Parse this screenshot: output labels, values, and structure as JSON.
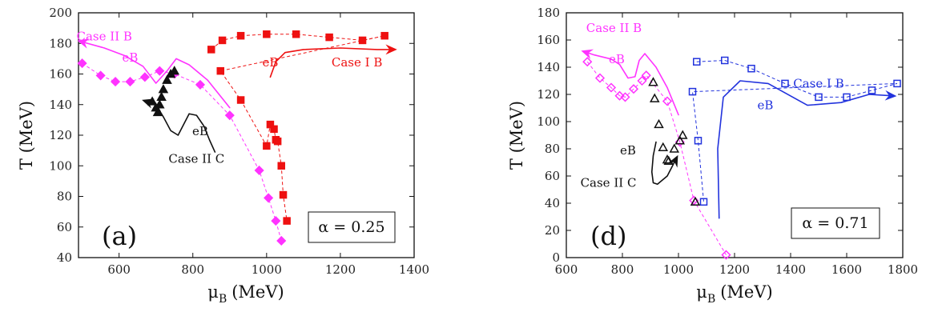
{
  "colors": {
    "magenta": "#ff33ff",
    "red": "#ee1111",
    "black": "#111111",
    "blue": "#2233dd",
    "purple": "#7733aa"
  },
  "chart_data": [
    {
      "type": "scatter",
      "panel_label": "(a)",
      "alpha_label": "α = 0.25",
      "xlabel": "μ_B (MeV)",
      "xlabel_main": "μ",
      "xlabel_sub": "B",
      "xlabel_rest": "(MeV)",
      "ylabel": "T (MeV)",
      "xlim": [
        490,
        1400
      ],
      "ylim": [
        40,
        200
      ],
      "xticks": [
        600,
        800,
        1000,
        1200,
        1400
      ],
      "yticks": [
        40,
        60,
        80,
        100,
        120,
        140,
        160,
        180,
        200
      ],
      "series": [
        {
          "name": "Case II B",
          "color": "#ff33ff",
          "marker": "diamond",
          "filled": true,
          "dashed": true,
          "x": [
            500,
            550,
            590,
            630,
            670,
            710,
            750,
            820,
            900,
            980,
            1005,
            1025,
            1040
          ],
          "y": [
            167,
            159,
            155,
            155,
            158,
            162,
            160,
            153,
            133,
            97,
            79,
            64,
            51
          ]
        },
        {
          "name": "Case I B",
          "color": "#ee1111",
          "marker": "square",
          "filled": true,
          "dashed": true,
          "x": [
            850,
            880,
            930,
            1000,
            1080,
            1170,
            1260,
            1320,
            875,
            930,
            1000,
            1010,
            1020,
            1025,
            1030,
            1040,
            1045,
            1055
          ],
          "y": [
            176,
            182,
            185,
            186,
            186,
            184,
            182,
            185,
            162,
            143,
            113,
            127,
            124,
            117,
            116,
            100,
            81,
            64
          ]
        },
        {
          "name": "Case II C",
          "color": "#111111",
          "marker": "triangle",
          "filled": true,
          "dashed": false,
          "x": [
            690,
            700,
            705,
            710,
            715,
            720,
            730,
            740,
            750
          ],
          "y": [
            142,
            138,
            135,
            140,
            145,
            150,
            156,
            160,
            162
          ]
        }
      ],
      "annotations": [
        {
          "text": "Case II B",
          "color": "#ff33ff",
          "x": 560,
          "y": 182
        },
        {
          "text": "eB",
          "color": "#ff33ff",
          "x": 630,
          "y": 168
        },
        {
          "text": "eB",
          "color": "#ee1111",
          "x": 1010,
          "y": 165
        },
        {
          "text": "Case I B",
          "color": "#ee1111",
          "x": 1245,
          "y": 165
        },
        {
          "text": "eB",
          "color": "#111111",
          "x": 820,
          "y": 120
        },
        {
          "text": "Case II C",
          "color": "#111111",
          "x": 810,
          "y": 102
        }
      ],
      "trend_arrows": [
        {
          "color": "#ff33ff",
          "x": [
            900,
            840,
            790,
            755,
            730,
            700,
            665,
            615,
            560,
            500
          ],
          "y": [
            138,
            156,
            166,
            170,
            162,
            154,
            165,
            172,
            177,
            181
          ]
        },
        {
          "color": "#ee1111",
          "x": [
            1010,
            1025,
            1050,
            1100,
            1200,
            1300,
            1340
          ],
          "y": [
            158,
            168,
            174,
            176,
            177,
            176,
            176
          ]
        },
        {
          "color": "#111111",
          "x": [
            860,
            845,
            830,
            810,
            790,
            775,
            760,
            740,
            720,
            700,
            675
          ],
          "y": [
            109,
            117,
            126,
            133,
            134,
            127,
            120,
            123,
            132,
            140,
            142
          ]
        }
      ]
    },
    {
      "type": "scatter",
      "panel_label": "(d)",
      "alpha_label": "α = 0.71",
      "xlabel": "μ_B (MeV)",
      "xlabel_main": "μ",
      "xlabel_sub": "B",
      "xlabel_rest": "(MeV)",
      "ylabel": "T (MeV)",
      "xlim": [
        600,
        1800
      ],
      "ylim": [
        0,
        180
      ],
      "xticks": [
        600,
        800,
        1000,
        1200,
        1400,
        1600,
        1800
      ],
      "yticks": [
        0,
        20,
        40,
        60,
        80,
        100,
        120,
        140,
        160,
        180
      ],
      "series": [
        {
          "name": "Case II B",
          "color": "#ff33ff",
          "marker": "diamond",
          "filled": false,
          "dashed": true,
          "x": [
            675,
            720,
            760,
            790,
            810,
            840,
            870,
            885,
            960,
            1005,
            1055,
            1170
          ],
          "y": [
            144,
            132,
            125,
            119,
            118,
            124,
            130,
            134,
            115,
            85,
            42,
            2
          ]
        },
        {
          "name": "Case I B",
          "color": "#2233dd",
          "marker": "square",
          "filled": false,
          "dashed": true,
          "x": [
            1065,
            1165,
            1260,
            1380,
            1500,
            1600,
            1690,
            1780,
            1050,
            1070,
            1090
          ],
          "y": [
            144,
            145,
            139,
            128,
            118,
            118,
            123,
            128,
            122,
            86,
            41
          ]
        },
        {
          "name": "Case II C",
          "color": "#111111",
          "marker": "triangle",
          "filled": false,
          "dashed": false,
          "x": [
            910,
            915,
            930,
            945,
            960,
            965,
            985,
            1005,
            1015,
            1060
          ],
          "y": [
            129,
            117,
            98,
            81,
            72,
            71,
            80,
            86,
            90,
            41
          ]
        }
      ],
      "annotations": [
        {
          "text": "Case II B",
          "color": "#ff33ff",
          "x": 770,
          "y": 166
        },
        {
          "text": "eB",
          "color": "#ff33ff",
          "x": 780,
          "y": 143
        },
        {
          "text": "Case I B",
          "color": "#2233dd",
          "x": 1500,
          "y": 125
        },
        {
          "text": "eB",
          "color": "#2233dd",
          "x": 1310,
          "y": 109
        },
        {
          "text": "eB",
          "color": "#111111",
          "x": 820,
          "y": 76
        },
        {
          "text": "Case II C",
          "color": "#111111",
          "x": 750,
          "y": 52
        }
      ],
      "trend_arrows": [
        {
          "color": "#ff33ff",
          "x": [
            1000,
            960,
            920,
            880,
            860,
            845,
            820,
            790,
            760,
            700,
            670
          ],
          "y": [
            105,
            125,
            140,
            150,
            145,
            133,
            132,
            142,
            146,
            149,
            151
          ]
        },
        {
          "color": "#2233dd",
          "x": [
            1145,
            1140,
            1160,
            1220,
            1320,
            1460,
            1580,
            1680,
            1760
          ],
          "y": [
            29,
            80,
            118,
            130,
            128,
            112,
            114,
            120,
            119
          ]
        },
        {
          "color": "#111111",
          "x": [
            920,
            910,
            905,
            910,
            925,
            960,
            990
          ],
          "y": [
            85,
            75,
            63,
            55,
            54,
            60,
            72
          ]
        }
      ]
    }
  ]
}
